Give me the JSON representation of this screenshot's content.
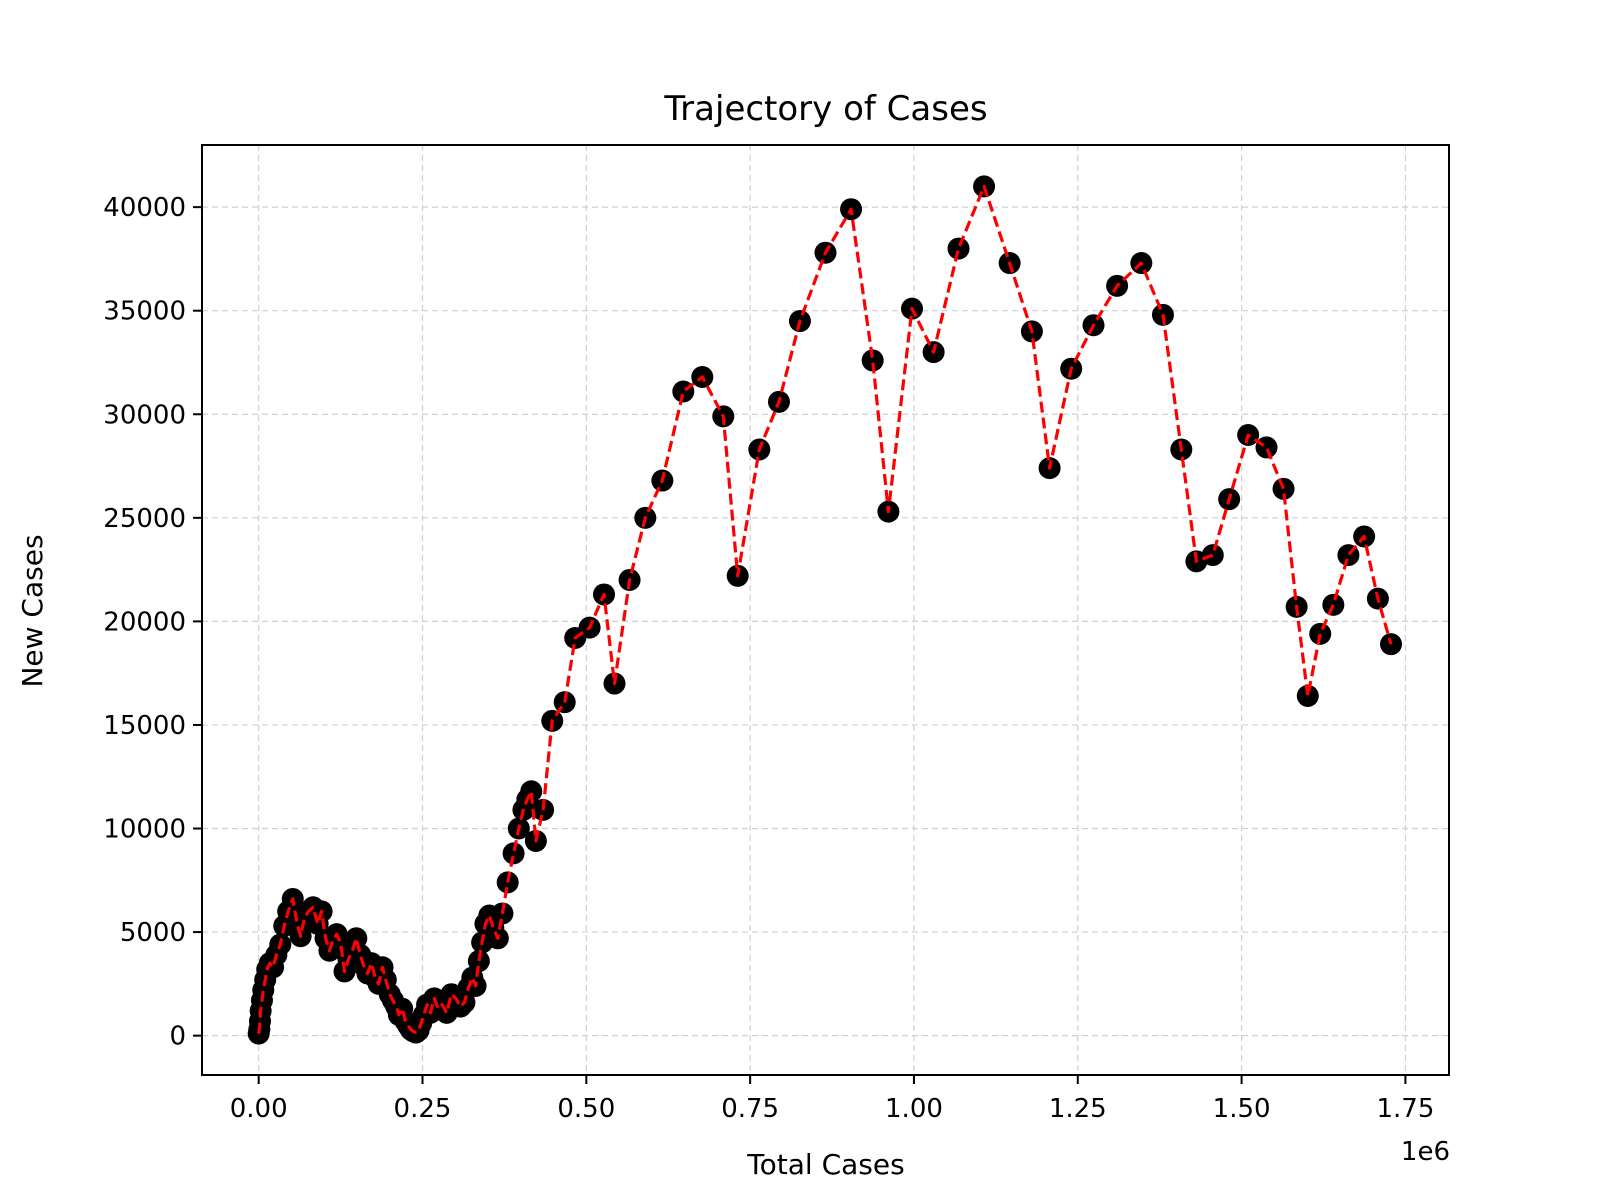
{
  "chart_data": {
    "type": "scatter",
    "title": "Trajectory of Cases",
    "xlabel": "Total Cases",
    "ylabel": "New Cases",
    "x_offset_label": "1e6",
    "xlim": [
      -0.0865,
      1.8165
    ],
    "ylim": [
      -1900,
      43000
    ],
    "x_ticks": [
      0.0,
      0.25,
      0.5,
      0.75,
      1.0,
      1.25,
      1.5,
      1.75
    ],
    "x_tick_labels": [
      "0.00",
      "0.25",
      "0.50",
      "0.75",
      "1.00",
      "1.25",
      "1.50",
      "1.75"
    ],
    "y_ticks": [
      0,
      5000,
      10000,
      15000,
      20000,
      25000,
      30000,
      35000,
      40000
    ],
    "y_tick_labels": [
      "0",
      "5000",
      "10000",
      "15000",
      "20000",
      "25000",
      "30000",
      "35000",
      "40000"
    ],
    "grid": true,
    "line_style": "dashed",
    "colors": {
      "line": "#ff0000",
      "marker": "#000000",
      "grid": "#d0d0d0"
    },
    "series": [
      {
        "x": [
          0.0,
          0.001,
          0.002,
          0.003,
          0.005,
          0.007,
          0.01,
          0.013,
          0.017,
          0.022,
          0.027,
          0.033,
          0.039,
          0.045,
          0.052,
          0.058,
          0.064,
          0.07,
          0.076,
          0.083,
          0.09,
          0.096,
          0.102,
          0.108,
          0.113,
          0.119,
          0.125,
          0.131,
          0.137,
          0.143,
          0.149,
          0.155,
          0.16,
          0.166,
          0.172,
          0.178,
          0.183,
          0.189,
          0.194,
          0.2,
          0.205,
          0.21,
          0.214,
          0.219,
          0.224,
          0.228,
          0.232,
          0.236,
          0.24,
          0.244,
          0.248,
          0.252,
          0.257,
          0.262,
          0.268,
          0.274,
          0.28,
          0.287,
          0.294,
          0.301,
          0.308,
          0.314,
          0.32,
          0.326,
          0.331,
          0.336,
          0.341,
          0.346,
          0.352,
          0.358,
          0.365,
          0.372,
          0.38,
          0.389,
          0.397,
          0.404,
          0.41,
          0.416,
          0.423,
          0.434,
          0.448,
          0.467,
          0.483,
          0.505,
          0.527,
          0.543,
          0.566,
          0.59,
          0.616,
          0.648,
          0.677,
          0.709,
          0.731,
          0.764,
          0.794,
          0.826,
          0.865,
          0.904,
          0.937,
          0.961,
          0.997,
          1.03,
          1.068,
          1.107,
          1.146,
          1.18,
          1.207,
          1.24,
          1.274,
          1.31,
          1.347,
          1.38,
          1.408,
          1.431,
          1.456,
          1.481,
          1.51,
          1.538,
          1.564,
          1.584,
          1.601,
          1.62,
          1.64,
          1.663,
          1.687,
          1.708,
          1.728
        ],
        "y": [
          100,
          300,
          700,
          1200,
          1700,
          2200,
          2700,
          3200,
          3500,
          3300,
          3900,
          4400,
          5300,
          6000,
          6600,
          5500,
          4800,
          5700,
          6000,
          6200,
          5400,
          6000,
          4700,
          4100,
          4600,
          4900,
          4500,
          3100,
          3700,
          4100,
          4700,
          3900,
          3400,
          3000,
          3500,
          2800,
          2500,
          3300,
          2700,
          2000,
          1700,
          1400,
          1000,
          1300,
          700,
          500,
          300,
          200,
          150,
          250,
          600,
          1000,
          1500,
          1100,
          1800,
          1300,
          1500,
          1100,
          2000,
          1800,
          1400,
          1600,
          2300,
          2800,
          2400,
          3600,
          4500,
          5400,
          5800,
          5200,
          4700,
          5900,
          7400,
          8800,
          10000,
          10900,
          11400,
          11800,
          9400,
          10900,
          15200,
          16100,
          19200,
          19700,
          21300,
          17000,
          22000,
          25000,
          26800,
          31100,
          31800,
          29900,
          22200,
          28300,
          30600,
          34500,
          37800,
          39900,
          32600,
          25300,
          35100,
          33000,
          38000,
          41000,
          37300,
          34000,
          27400,
          32200,
          34300,
          36200,
          37300,
          34800,
          28300,
          22900,
          23200,
          25900,
          29000,
          28400,
          26400,
          20700,
          16400,
          19400,
          20800,
          23200,
          24100,
          21100,
          18900
        ]
      }
    ]
  }
}
